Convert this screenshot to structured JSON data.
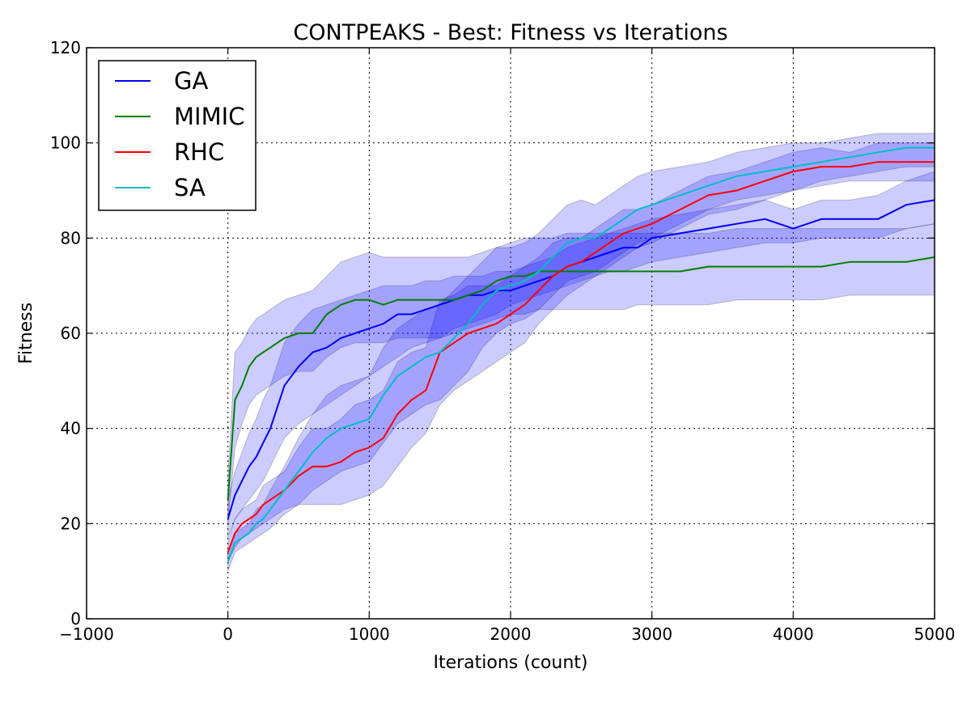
{
  "chart_data": {
    "type": "line",
    "title": "CONTPEAKS - Best: Fitness vs Iterations",
    "xlabel": "Iterations (count)",
    "ylabel": "Fitness",
    "xlim": [
      -1000,
      5000
    ],
    "ylim": [
      0,
      120
    ],
    "xticks": [
      -1000,
      0,
      1000,
      2000,
      3000,
      4000,
      5000
    ],
    "xtick_labels": [
      "−1000",
      "0",
      "1000",
      "2000",
      "3000",
      "4000",
      "5000"
    ],
    "yticks": [
      0,
      20,
      40,
      60,
      80,
      100,
      120
    ],
    "ytick_labels": [
      "0",
      "20",
      "40",
      "60",
      "80",
      "100",
      "120"
    ],
    "grid": true,
    "legend_position": "top-left",
    "x": [
      0,
      50,
      100,
      150,
      200,
      250,
      300,
      400,
      500,
      600,
      700,
      800,
      900,
      1000,
      1100,
      1200,
      1300,
      1400,
      1500,
      1600,
      1700,
      1800,
      1900,
      2000,
      2100,
      2200,
      2300,
      2400,
      2500,
      2600,
      2700,
      2800,
      2900,
      3000,
      3200,
      3400,
      3600,
      3800,
      4000,
      4200,
      4400,
      4600,
      4800,
      5000
    ],
    "series": [
      {
        "name": "GA",
        "color": "#0000ff",
        "band_color": "#0000ff",
        "values": [
          21,
          26,
          29,
          32,
          34,
          37,
          40,
          49,
          53,
          56,
          57,
          59,
          60,
          61,
          62,
          64,
          64,
          65,
          66,
          67,
          68,
          68,
          69,
          69,
          70,
          71,
          72,
          74,
          75,
          76,
          77,
          78,
          78,
          80,
          81,
          82,
          83,
          84,
          82,
          84,
          84,
          84,
          87,
          88
        ],
        "lower": [
          17,
          21,
          23,
          25,
          27,
          29,
          32,
          38,
          41,
          43,
          45,
          47,
          49,
          51,
          53,
          55,
          57,
          58,
          59,
          61,
          62,
          63,
          64,
          66,
          67,
          68,
          69,
          70,
          71,
          72,
          73,
          73,
          74,
          75,
          76,
          77,
          78,
          79,
          79,
          80,
          80,
          80,
          82,
          83
        ],
        "upper": [
          25,
          31,
          35,
          39,
          42,
          46,
          49,
          58,
          62,
          65,
          66,
          67,
          68,
          69,
          70,
          70,
          70,
          71,
          71,
          72,
          72,
          72,
          73,
          73,
          74,
          75,
          76,
          78,
          79,
          80,
          81,
          82,
          83,
          84,
          85,
          86,
          87,
          88,
          86,
          88,
          88,
          89,
          92,
          94
        ]
      },
      {
        "name": "MIMIC",
        "color": "#007f00",
        "band_color": "#0000ff",
        "values": [
          25,
          46,
          49,
          53,
          55,
          56,
          57,
          59,
          60,
          60,
          64,
          66,
          67,
          67,
          66,
          67,
          67,
          67,
          67,
          67,
          68,
          69,
          71,
          72,
          72,
          73,
          73,
          73,
          73,
          73,
          73,
          73,
          73,
          73,
          73,
          74,
          74,
          74,
          74,
          74,
          75,
          75,
          75,
          76
        ],
        "lower": [
          20,
          36,
          41,
          45,
          47,
          48,
          49,
          51,
          52,
          52,
          55,
          57,
          58,
          58,
          58,
          59,
          59,
          59,
          59,
          60,
          61,
          62,
          63,
          64,
          64,
          65,
          65,
          65,
          65,
          65,
          65,
          65,
          66,
          66,
          66,
          66,
          67,
          67,
          67,
          67,
          68,
          68,
          68,
          68
        ],
        "upper": [
          30,
          56,
          58,
          61,
          63,
          64,
          65,
          67,
          68,
          69,
          72,
          75,
          76,
          77,
          76,
          76,
          76,
          76,
          76,
          76,
          76,
          77,
          78,
          79,
          80,
          80,
          80,
          81,
          81,
          81,
          81,
          81,
          81,
          81,
          81,
          81,
          82,
          82,
          82,
          82,
          82,
          82,
          82,
          83
        ]
      },
      {
        "name": "RHC",
        "color": "#ff0000",
        "band_color": "#0000ff",
        "values": [
          14,
          18,
          20,
          21,
          22,
          24,
          25,
          27,
          30,
          32,
          32,
          33,
          35,
          36,
          38,
          43,
          46,
          48,
          56,
          58,
          60,
          61,
          62,
          64,
          66,
          69,
          72,
          74,
          75,
          77,
          79,
          81,
          82,
          83,
          86,
          89,
          90,
          92,
          94,
          95,
          95,
          96,
          96,
          96
        ],
        "lower": [
          12,
          15,
          17,
          18,
          19,
          20,
          21,
          23,
          24,
          24,
          24,
          24,
          25,
          26,
          28,
          32,
          36,
          39,
          45,
          48,
          50,
          52,
          54,
          56,
          58,
          62,
          65,
          68,
          70,
          72,
          74,
          76,
          78,
          79,
          82,
          85,
          86,
          88,
          90,
          91,
          92,
          92,
          92,
          92
        ],
        "upper": [
          16,
          21,
          23,
          24,
          25,
          28,
          29,
          31,
          36,
          40,
          40,
          42,
          45,
          46,
          48,
          54,
          56,
          57,
          67,
          68,
          70,
          70,
          70,
          72,
          74,
          76,
          79,
          80,
          80,
          82,
          84,
          86,
          86,
          87,
          90,
          93,
          94,
          96,
          98,
          99,
          98,
          100,
          100,
          100
        ]
      },
      {
        "name": "SA",
        "color": "#00bfbf",
        "band_color": "#0000ff",
        "values": [
          12,
          16,
          17,
          18,
          20,
          21,
          23,
          27,
          31,
          35,
          38,
          40,
          41,
          42,
          47,
          51,
          53,
          55,
          56,
          59,
          62,
          66,
          69,
          70,
          71,
          73,
          76,
          79,
          80,
          80,
          82,
          84,
          86,
          87,
          89,
          91,
          93,
          94,
          95,
          96,
          97,
          98,
          99,
          99
        ],
        "lower": [
          10,
          14,
          15,
          16,
          17,
          18,
          19,
          22,
          24,
          27,
          29,
          31,
          32,
          33,
          37,
          41,
          43,
          45,
          46,
          49,
          52,
          57,
          60,
          62,
          63,
          65,
          68,
          71,
          72,
          73,
          75,
          77,
          79,
          80,
          83,
          86,
          88,
          89,
          90,
          92,
          93,
          94,
          95,
          95
        ],
        "upper": [
          14,
          18,
          19,
          20,
          23,
          24,
          27,
          32,
          38,
          43,
          47,
          49,
          50,
          51,
          57,
          61,
          63,
          65,
          66,
          69,
          72,
          75,
          78,
          78,
          79,
          81,
          84,
          87,
          88,
          87,
          89,
          91,
          93,
          94,
          95,
          96,
          98,
          99,
          100,
          100,
          101,
          102,
          102,
          102
        ]
      }
    ]
  }
}
